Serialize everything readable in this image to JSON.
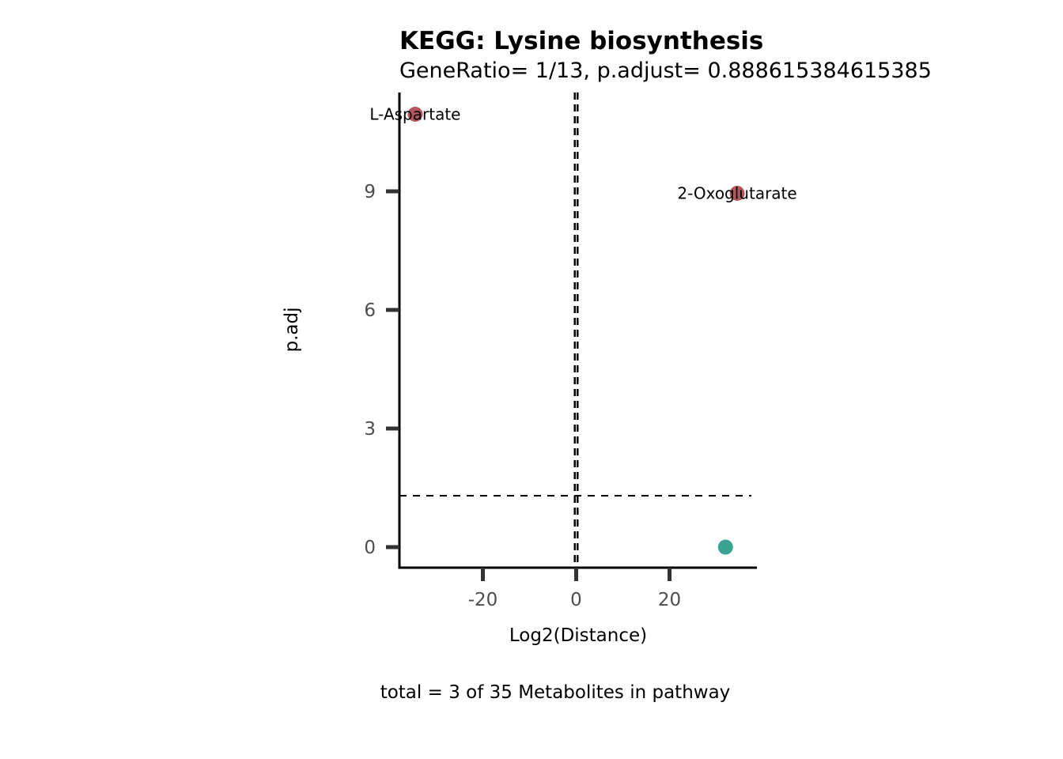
{
  "chart_data": {
    "type": "scatter",
    "title": "KEGG: Lysine biosynthesis",
    "subtitle": "GeneRatio= 1/13, p.adjust= 0.888615384615385",
    "xlabel": "Log2(Distance)",
    "ylabel": "p.adj",
    "caption": "total = 3 of 35 Metabolites in pathway",
    "xlim": [
      -38,
      39
    ],
    "ylim": [
      -0.5,
      11.5
    ],
    "x_ticks": [
      -20,
      0,
      20
    ],
    "x_tick_labels": [
      "-20",
      "0",
      "20"
    ],
    "y_ticks": [
      0,
      3,
      6,
      9
    ],
    "y_tick_labels": [
      "0",
      "3",
      "6",
      "9"
    ],
    "vlines": [
      -0.3,
      0.3
    ],
    "hline": 1.3,
    "grid": false,
    "points": [
      {
        "x": -34.5,
        "y": 10.95,
        "label": "L-Aspartate",
        "color": "#b5555f"
      },
      {
        "x": 34.5,
        "y": 8.95,
        "label": "2-Oxoglutarate",
        "color": "#b5555f"
      },
      {
        "x": 32,
        "y": 0.0,
        "label": "",
        "color": "#3aa393"
      }
    ]
  }
}
